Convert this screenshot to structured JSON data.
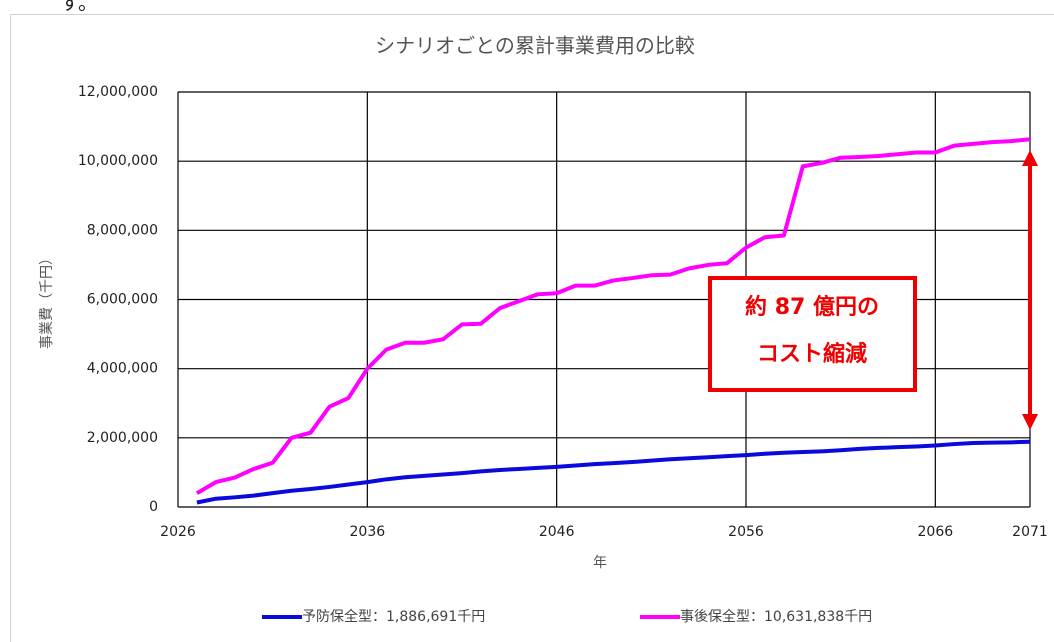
{
  "page_text": "す。",
  "chart_data": {
    "type": "line",
    "title": "シナリオごとの累計事業費用の比較",
    "x_label": "年",
    "y_label": "事業費（千円）",
    "annotation": [
      "約 87 億円の",
      "コスト縮減"
    ],
    "x": [
      2027,
      2028,
      2029,
      2030,
      2031,
      2032,
      2033,
      2034,
      2035,
      2036,
      2037,
      2038,
      2039,
      2040,
      2041,
      2042,
      2043,
      2044,
      2045,
      2046,
      2047,
      2048,
      2049,
      2050,
      2051,
      2052,
      2053,
      2054,
      2055,
      2056,
      2057,
      2058,
      2059,
      2060,
      2061,
      2062,
      2063,
      2064,
      2065,
      2066,
      2067,
      2068,
      2069,
      2070,
      2071
    ],
    "series": [
      {
        "name": "予防保全型：1,886,691千円",
        "color": "#0a0adc",
        "values": [
          130000,
          240000,
          280000,
          330000,
          400000,
          470000,
          520000,
          580000,
          650000,
          720000,
          800000,
          860000,
          900000,
          940000,
          980000,
          1030000,
          1070000,
          1100000,
          1130000,
          1160000,
          1200000,
          1240000,
          1270000,
          1300000,
          1340000,
          1380000,
          1410000,
          1440000,
          1470000,
          1500000,
          1540000,
          1570000,
          1590000,
          1610000,
          1640000,
          1680000,
          1710000,
          1730000,
          1750000,
          1780000,
          1820000,
          1850000,
          1860000,
          1870000,
          1886691
        ]
      },
      {
        "name": "事後保全型：10,631,838千円",
        "color": "#ff00ff",
        "values": [
          400000,
          720000,
          850000,
          1100000,
          1280000,
          2000000,
          2150000,
          2900000,
          3150000,
          4000000,
          4550000,
          4750000,
          4750000,
          4850000,
          5280000,
          5300000,
          5750000,
          5950000,
          6150000,
          6180000,
          6400000,
          6400000,
          6550000,
          6620000,
          6700000,
          6720000,
          6900000,
          7000000,
          7050000,
          7500000,
          7800000,
          7850000,
          9850000,
          9950000,
          10100000,
          10120000,
          10150000,
          10200000,
          10250000,
          10250000,
          10450000,
          10500000,
          10550000,
          10580000,
          10631838
        ]
      }
    ],
    "xlim": [
      2026,
      2071
    ],
    "xticks": [
      2026,
      2036,
      2046,
      2056,
      2066,
      2071
    ],
    "ylim": [
      0,
      12000000
    ],
    "yticks": [
      0,
      {
        "value": 2000000,
        "label": "2,000,000"
      },
      {
        "value": 4000000,
        "label": "4,000,000"
      },
      {
        "value": 6000000,
        "label": "6,000,000"
      },
      {
        "value": 8000000,
        "label": "8,000,000"
      },
      {
        "value": 10000000,
        "label": "10,000,000"
      },
      {
        "value": 12000000,
        "label": "12,000,000"
      }
    ],
    "grid": true,
    "legend": "bottom"
  }
}
